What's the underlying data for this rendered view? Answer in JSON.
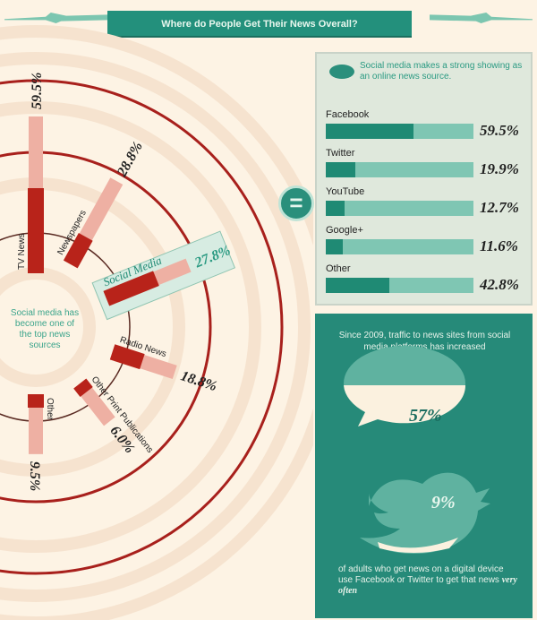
{
  "title": "Where do People Get Their News Overall?",
  "radial": {
    "center_note": "Social media has become one of the top news sources"
  },
  "panel": {
    "note": "Social media makes a strong showing as an online news source.",
    "equals": "="
  },
  "teal": {
    "since_text": "Since 2009, traffic to news sites from social media platforms has increased",
    "increase": "57%",
    "share": "9%",
    "footer_text": "of adults who get news on a digital device use Facebook or Twitter to get that news",
    "footer_emph": "very often"
  },
  "colors": {
    "teal": "#268a79",
    "dark_red": "#b8231a",
    "pink": "#eeb0a3",
    "ring": "#a8201c"
  },
  "chart_data": [
    {
      "type": "bar",
      "subtype": "radial",
      "categories": [
        "TV News",
        "Newspapers",
        "Social Media",
        "Radio News",
        "Other Print Publications",
        "Other"
      ],
      "values": [
        59.5,
        28.8,
        27.8,
        18.8,
        6.0,
        9.5
      ],
      "labels": [
        "59.5%",
        "28.8%",
        "27.8%",
        "18.8%",
        "6.0%",
        "9.5%"
      ],
      "highlight": "Social Media"
    },
    {
      "type": "bar",
      "orientation": "horizontal",
      "categories": [
        "Facebook",
        "Twitter",
        "YouTube",
        "Google+",
        "Other"
      ],
      "values": [
        59.5,
        19.9,
        12.7,
        11.6,
        42.8
      ],
      "labels": [
        "59.5%",
        "19.9%",
        "12.7%",
        "11.6%",
        "42.8%"
      ],
      "xlim": [
        0,
        100
      ]
    }
  ]
}
